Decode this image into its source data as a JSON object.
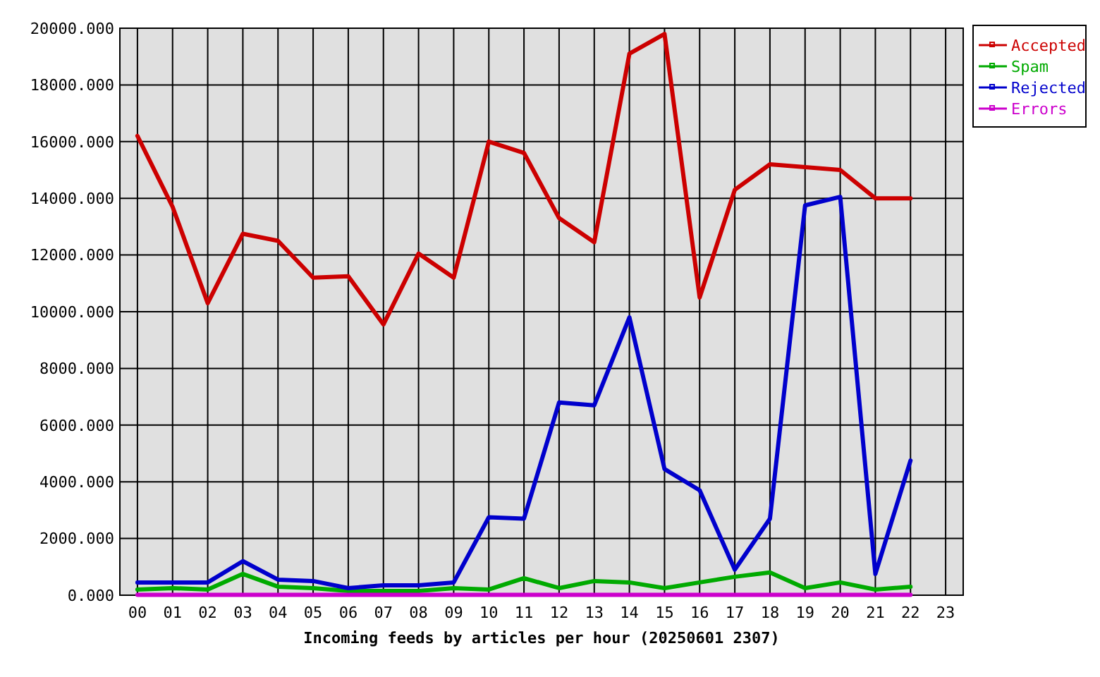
{
  "chart_data": {
    "type": "line",
    "xlabel": "Incoming feeds by articles per hour (20250601 2307)",
    "categories": [
      "00",
      "01",
      "02",
      "03",
      "04",
      "05",
      "06",
      "07",
      "08",
      "09",
      "10",
      "11",
      "12",
      "13",
      "14",
      "15",
      "16",
      "17",
      "18",
      "19",
      "20",
      "21",
      "22",
      "23"
    ],
    "series": [
      {
        "name": "Accepted",
        "color": "#cc0000",
        "values": [
          16200,
          13700,
          10300,
          12750,
          12500,
          11200,
          11250,
          9550,
          12050,
          11200,
          16000,
          15600,
          13300,
          12450,
          19100,
          19800,
          10500,
          14300,
          15200,
          15100,
          15000,
          14000,
          14000,
          null
        ]
      },
      {
        "name": "Spam",
        "color": "#00aa00",
        "values": [
          200,
          250,
          200,
          750,
          300,
          250,
          150,
          150,
          150,
          250,
          200,
          600,
          250,
          500,
          450,
          250,
          450,
          650,
          800,
          250,
          450,
          200,
          300,
          null
        ]
      },
      {
        "name": "Rejected",
        "color": "#0000cc",
        "values": [
          450,
          450,
          450,
          1200,
          550,
          500,
          250,
          350,
          350,
          450,
          2750,
          2700,
          6800,
          6700,
          9800,
          4450,
          3700,
          900,
          2700,
          13750,
          14050,
          750,
          4750,
          null
        ]
      },
      {
        "name": "Errors",
        "color": "#cc00cc",
        "values": [
          10,
          10,
          10,
          10,
          10,
          10,
          10,
          10,
          10,
          10,
          10,
          10,
          10,
          10,
          10,
          10,
          10,
          10,
          10,
          10,
          10,
          10,
          10,
          null
        ]
      }
    ],
    "ylim": [
      0,
      20000
    ],
    "yticks": [
      {
        "value": 0,
        "label": "0.000"
      },
      {
        "value": 2000,
        "label": "2000.000"
      },
      {
        "value": 4000,
        "label": "4000.000"
      },
      {
        "value": 6000,
        "label": "6000.000"
      },
      {
        "value": 8000,
        "label": "8000.000"
      },
      {
        "value": 10000,
        "label": "10000.000"
      },
      {
        "value": 12000,
        "label": "12000.000"
      },
      {
        "value": 14000,
        "label": "14000.000"
      },
      {
        "value": 16000,
        "label": "16000.000"
      },
      {
        "value": 18000,
        "label": "18000.000"
      },
      {
        "value": 20000,
        "label": "20000.000"
      }
    ],
    "grid": true,
    "legend": "top right"
  }
}
